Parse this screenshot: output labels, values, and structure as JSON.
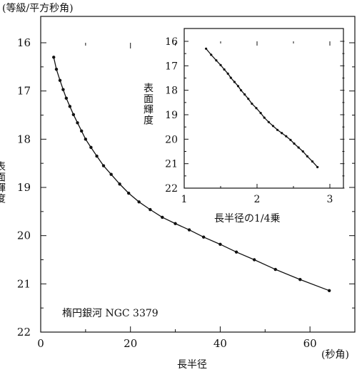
{
  "chart_data": [
    {
      "type": "line",
      "ylabel": "(等級/平方秒角)",
      "ylabel_side": "表面輝度",
      "xlabel": "長半径",
      "xunit": "(秒角)",
      "annotation": "楕円銀河 NGC 3379",
      "xlim": [
        0,
        70
      ],
      "ylim": [
        16,
        22
      ],
      "y_inverted": true,
      "xticks": [
        0,
        20,
        40,
        60
      ],
      "yticks": [
        16,
        17,
        18,
        19,
        20,
        21,
        22
      ],
      "series": [
        {
          "marker": "dot",
          "x": [
            2.9,
            3.5,
            4.3,
            5.0,
            5.7,
            6.5,
            7.3,
            8.2,
            9.1,
            10.0,
            11.2,
            12.5,
            14.0,
            15.7,
            17.6,
            19.6,
            21.9,
            24.4,
            27.1,
            30.0,
            33.1,
            36.3,
            40.0,
            43.6,
            47.6,
            52.3,
            57.8,
            64.3
          ],
          "y": [
            16.3,
            16.55,
            16.78,
            16.97,
            17.15,
            17.32,
            17.49,
            17.66,
            17.83,
            18.0,
            18.17,
            18.35,
            18.55,
            18.73,
            18.93,
            19.12,
            19.3,
            19.46,
            19.62,
            19.75,
            19.88,
            20.03,
            20.18,
            20.34,
            20.5,
            20.7,
            20.91,
            21.14
          ]
        }
      ]
    },
    {
      "type": "line",
      "inset": true,
      "ylabel": "表面輝度",
      "xlabel": "長半径の1/4乗",
      "xlim": [
        1,
        3.2
      ],
      "ylim": [
        16,
        22
      ],
      "y_inverted": true,
      "xticks": [
        1,
        2,
        3
      ],
      "yticks": [
        16,
        17,
        18,
        19,
        20,
        21,
        22
      ],
      "series": [
        {
          "marker": "dot",
          "x": [
            1.3,
            1.37,
            1.44,
            1.5,
            1.55,
            1.6,
            1.64,
            1.69,
            1.74,
            1.78,
            1.83,
            1.88,
            1.93,
            1.99,
            2.05,
            2.1,
            2.16,
            2.22,
            2.28,
            2.34,
            2.4,
            2.46,
            2.51,
            2.57,
            2.63,
            2.69,
            2.76,
            2.83
          ],
          "y": [
            16.3,
            16.55,
            16.78,
            16.97,
            17.15,
            17.32,
            17.49,
            17.66,
            17.83,
            18.0,
            18.17,
            18.35,
            18.55,
            18.73,
            18.93,
            19.12,
            19.3,
            19.46,
            19.62,
            19.75,
            19.88,
            20.03,
            20.18,
            20.34,
            20.5,
            20.7,
            20.91,
            21.14
          ]
        }
      ]
    }
  ]
}
